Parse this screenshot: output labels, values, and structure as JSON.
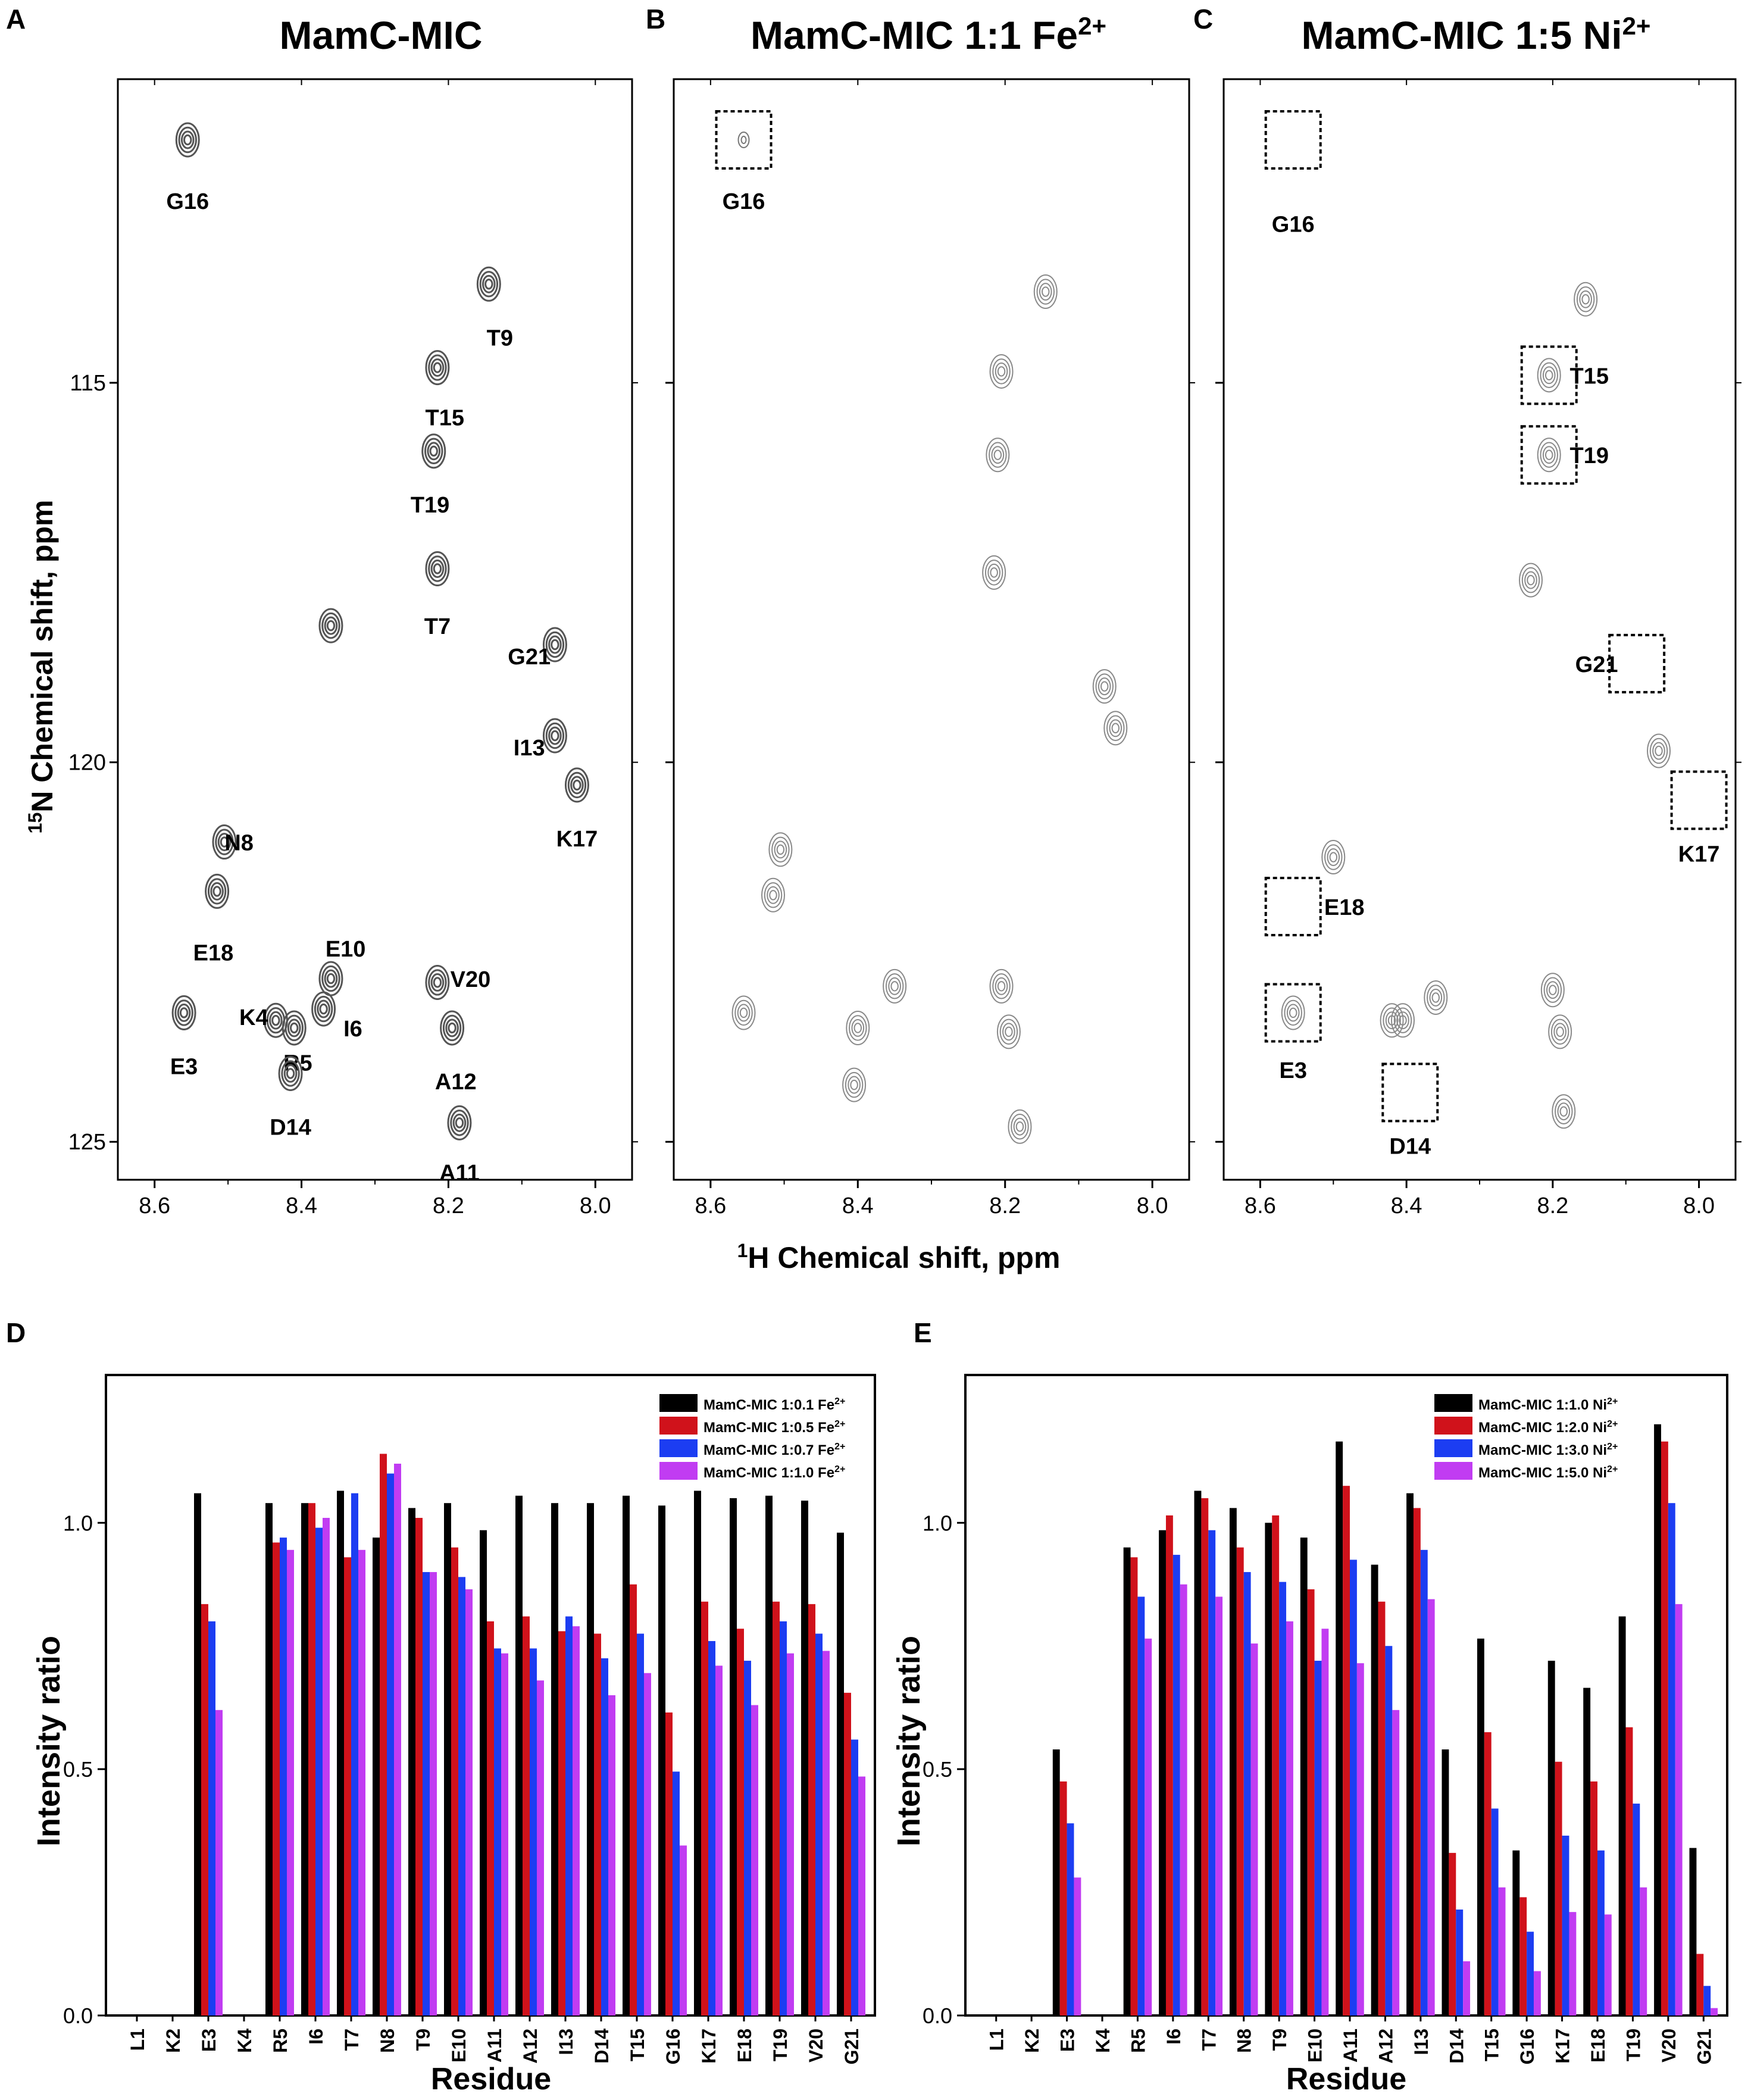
{
  "figure": {
    "shared_x_label_prefix": "1",
    "shared_x_label": "H Chemical shift, ppm",
    "shared_y_label_prefix": "15",
    "shared_y_label": "N Chemical shift, ppm"
  },
  "chart_data": [
    {
      "panel": "A",
      "type": "scatter",
      "title": "MamC-MIC",
      "title_sup": "",
      "xlabel": "1H Chemical shift, ppm",
      "ylabel": "15N Chemical shift, ppm",
      "xlim": [
        8.65,
        7.95
      ],
      "ylim": [
        111.0,
        125.5
      ],
      "xticks": [
        "8.6",
        "8.4",
        "8.2",
        "8.0"
      ],
      "yticks": [
        "115",
        "120",
        "125"
      ],
      "peaks": [
        {
          "label": "G16",
          "x": 8.555,
          "y": 111.8,
          "lx": 8.555,
          "ly": 112.6
        },
        {
          "label": "T9",
          "x": 8.145,
          "y": 113.7,
          "lx": 8.13,
          "ly": 114.4
        },
        {
          "label": "T15",
          "x": 8.215,
          "y": 114.8,
          "lx": 8.205,
          "ly": 115.45
        },
        {
          "label": "T19",
          "x": 8.22,
          "y": 115.9,
          "lx": 8.225,
          "ly": 116.6
        },
        {
          "label": "T7",
          "x": 8.215,
          "y": 117.45,
          "lx": 8.215,
          "ly": 118.2
        },
        {
          "label": "G21",
          "x": 8.055,
          "y": 118.45,
          "lx": 8.09,
          "ly": 118.6
        },
        {
          "label": "I13",
          "x": 8.055,
          "y": 119.65,
          "lx": 8.09,
          "ly": 119.8
        },
        {
          "label": "K17",
          "x": 8.025,
          "y": 120.3,
          "lx": 8.025,
          "ly": 121.0
        },
        {
          "label": "N8",
          "x": 8.505,
          "y": 121.05,
          "lx": 8.485,
          "ly": 121.05
        },
        {
          "label": "E18",
          "x": 8.515,
          "y": 121.7,
          "lx": 8.52,
          "ly": 122.5
        },
        {
          "label": "E10",
          "x": 8.36,
          "y": 122.85,
          "lx": 8.34,
          "ly": 122.45
        },
        {
          "label": "V20",
          "x": 8.215,
          "y": 122.9,
          "lx": 8.17,
          "ly": 122.85
        },
        {
          "label": "E3",
          "x": 8.56,
          "y": 123.3,
          "lx": 8.56,
          "ly": 124.0
        },
        {
          "label": "K4",
          "x": 8.435,
          "y": 123.4,
          "lx": 8.465,
          "ly": 123.35
        },
        {
          "label": "R5",
          "x": 8.41,
          "y": 123.5,
          "lx": 8.405,
          "ly": 123.95
        },
        {
          "label": "I6",
          "x": 8.37,
          "y": 123.25,
          "lx": 8.33,
          "ly": 123.5
        },
        {
          "label": "A12",
          "x": 8.195,
          "y": 123.5,
          "lx": 8.19,
          "ly": 124.2
        },
        {
          "label": "D14",
          "x": 8.415,
          "y": 124.1,
          "lx": 8.415,
          "ly": 124.8
        },
        {
          "label": "A11",
          "x": 8.185,
          "y": 124.75,
          "lx": 8.185,
          "ly": 125.4
        }
      ],
      "extra_peaks": [
        {
          "x": 8.36,
          "y": 118.2
        }
      ],
      "boxes": []
    },
    {
      "panel": "B",
      "type": "scatter",
      "title": "MamC-MIC 1:1 Fe",
      "title_sup": "2+",
      "xlabel": "1H Chemical shift, ppm",
      "ylabel": "15N Chemical shift, ppm",
      "xlim": [
        8.65,
        7.95
      ],
      "ylim": [
        111.0,
        125.5
      ],
      "xticks": [
        "8.6",
        "8.4",
        "8.2",
        "8.0"
      ],
      "yticks": [],
      "peaks": [
        {
          "label": "G16",
          "x": 8.555,
          "y": 111.8,
          "lx": 8.555,
          "ly": 112.6
        }
      ],
      "extra_peaks": [
        {
          "x": 8.145,
          "y": 113.8
        },
        {
          "x": 8.205,
          "y": 114.85
        },
        {
          "x": 8.21,
          "y": 115.95
        },
        {
          "x": 8.215,
          "y": 117.5
        },
        {
          "x": 8.065,
          "y": 119.0
        },
        {
          "x": 8.05,
          "y": 119.55
        },
        {
          "x": 8.505,
          "y": 121.15
        },
        {
          "x": 8.515,
          "y": 121.75
        },
        {
          "x": 8.35,
          "y": 122.95
        },
        {
          "x": 8.205,
          "y": 122.95
        },
        {
          "x": 8.195,
          "y": 123.55
        },
        {
          "x": 8.555,
          "y": 123.3
        },
        {
          "x": 8.4,
          "y": 123.5
        },
        {
          "x": 8.405,
          "y": 124.25
        },
        {
          "x": 8.18,
          "y": 124.8
        }
      ],
      "boxes": [
        {
          "label": "G16",
          "x": 8.555,
          "y": 111.8
        }
      ]
    },
    {
      "panel": "C",
      "type": "scatter",
      "title": "MamC-MIC 1:5 Ni",
      "title_sup": "2+",
      "xlabel": "1H Chemical shift, ppm",
      "ylabel": "15N Chemical shift, ppm",
      "xlim": [
        8.65,
        7.95
      ],
      "ylim": [
        111.0,
        125.5
      ],
      "xticks": [
        "8.6",
        "8.4",
        "8.2",
        "8.0"
      ],
      "yticks": [],
      "peaks": [
        {
          "label": "G16",
          "x": 8.555,
          "y": 111.8,
          "lx": 8.555,
          "ly": 112.9
        },
        {
          "label": "T15",
          "x": 8.205,
          "y": 114.9,
          "lx": 8.15,
          "ly": 114.9
        },
        {
          "label": "T19",
          "x": 8.205,
          "y": 115.95,
          "lx": 8.15,
          "ly": 115.95
        },
        {
          "label": "G21",
          "x": 8.085,
          "y": 118.7,
          "lx": 8.14,
          "ly": 118.7
        },
        {
          "label": "K17",
          "x": 8.0,
          "y": 120.5,
          "lx": 8.0,
          "ly": 121.2
        },
        {
          "label": "E18",
          "x": 8.555,
          "y": 121.9,
          "lx": 8.485,
          "ly": 121.9
        },
        {
          "label": "E3",
          "x": 8.555,
          "y": 123.3,
          "lx": 8.555,
          "ly": 124.05
        },
        {
          "label": "D14",
          "x": 8.395,
          "y": 124.35,
          "lx": 8.395,
          "ly": 125.05
        }
      ],
      "extra_peaks": [
        {
          "x": 8.155,
          "y": 113.9
        },
        {
          "x": 8.23,
          "y": 117.6
        },
        {
          "x": 8.055,
          "y": 119.85
        },
        {
          "x": 8.5,
          "y": 121.25
        },
        {
          "x": 8.36,
          "y": 123.1
        },
        {
          "x": 8.42,
          "y": 123.4
        },
        {
          "x": 8.405,
          "y": 123.4
        },
        {
          "x": 8.2,
          "y": 123.0
        },
        {
          "x": 8.19,
          "y": 123.55
        },
        {
          "x": 8.185,
          "y": 124.6
        },
        {
          "x": 8.205,
          "y": 114.9
        },
        {
          "x": 8.205,
          "y": 115.95
        },
        {
          "x": 8.555,
          "y": 123.3
        }
      ],
      "boxes": [
        {
          "label": "G16",
          "x": 8.555,
          "y": 111.8
        },
        {
          "label": "T15",
          "x": 8.205,
          "y": 114.9
        },
        {
          "label": "T19",
          "x": 8.205,
          "y": 115.95
        },
        {
          "label": "G21",
          "x": 8.085,
          "y": 118.7
        },
        {
          "label": "K17",
          "x": 8.0,
          "y": 120.5
        },
        {
          "label": "E18",
          "x": 8.555,
          "y": 121.9
        },
        {
          "label": "E3",
          "x": 8.555,
          "y": 123.3
        },
        {
          "label": "D14",
          "x": 8.395,
          "y": 124.35
        }
      ]
    },
    {
      "panel": "D",
      "type": "bar",
      "title": "",
      "xlabel": "Residue",
      "ylabel": "Intensity ratio",
      "ylim": [
        0,
        1.3
      ],
      "yticks": [
        "0.0",
        "0.5",
        "1.0"
      ],
      "categories": [
        "L1",
        "K2",
        "E3",
        "K4",
        "R5",
        "I6",
        "T7",
        "N8",
        "T9",
        "E10",
        "A11",
        "A12",
        "I13",
        "D14",
        "T15",
        "G16",
        "K17",
        "E18",
        "T19",
        "V20",
        "G21"
      ],
      "series": [
        {
          "name": "MamC-MIC 1:0.1 Fe",
          "sup": "2+",
          "color": "#000000",
          "values": [
            0,
            0,
            1.06,
            0,
            1.04,
            1.04,
            1.065,
            0.97,
            1.03,
            1.04,
            0.985,
            1.055,
            1.04,
            1.04,
            1.055,
            1.035,
            1.065,
            1.05,
            1.055,
            1.045,
            0.98
          ]
        },
        {
          "name": "MamC-MIC 1:0.5 Fe",
          "sup": "2+",
          "color": "#d0121b",
          "values": [
            0,
            0,
            0.835,
            0,
            0.96,
            1.04,
            0.93,
            1.14,
            1.01,
            0.95,
            0.8,
            0.81,
            0.78,
            0.775,
            0.875,
            0.615,
            0.84,
            0.785,
            0.84,
            0.835,
            0.655
          ]
        },
        {
          "name": "MamC-MIC 1:0.7 Fe",
          "sup": "2+",
          "color": "#1c3df2",
          "values": [
            0,
            0,
            0.8,
            0,
            0.97,
            0.99,
            1.06,
            1.1,
            0.9,
            0.89,
            0.745,
            0.745,
            0.81,
            0.725,
            0.775,
            0.495,
            0.76,
            0.72,
            0.8,
            0.775,
            0.56
          ]
        },
        {
          "name": "MamC-MIC 1:1.0 Fe",
          "sup": "2+",
          "color": "#c13cf2",
          "values": [
            0,
            0,
            0.62,
            0,
            0.945,
            1.01,
            0.945,
            1.12,
            0.9,
            0.865,
            0.735,
            0.68,
            0.79,
            0.65,
            0.695,
            0.345,
            0.71,
            0.63,
            0.735,
            0.74,
            0.485
          ]
        }
      ]
    },
    {
      "panel": "E",
      "type": "bar",
      "title": "",
      "xlabel": "Residue",
      "ylabel": "Intensity ratio",
      "ylim": [
        0,
        1.3
      ],
      "yticks": [
        "0.0",
        "0.5",
        "1.0"
      ],
      "categories": [
        "L1",
        "K2",
        "E3",
        "K4",
        "R5",
        "I6",
        "T7",
        "N8",
        "T9",
        "E10",
        "A11",
        "A12",
        "I13",
        "D14",
        "T15",
        "G16",
        "K17",
        "E18",
        "T19",
        "V20",
        "G21"
      ],
      "series": [
        {
          "name": "MamC-MIC 1:1.0 Ni",
          "sup": "2+",
          "color": "#000000",
          "values": [
            0,
            0,
            0.54,
            0,
            0.95,
            0.985,
            1.065,
            1.03,
            1.0,
            0.97,
            1.165,
            0.915,
            1.06,
            0.54,
            0.765,
            0.335,
            0.72,
            0.665,
            0.81,
            1.2,
            0.34
          ]
        },
        {
          "name": "MamC-MIC 1:2.0 Ni",
          "sup": "2+",
          "color": "#d0121b",
          "values": [
            0,
            0,
            0.475,
            0,
            0.93,
            1.015,
            1.05,
            0.95,
            1.015,
            0.865,
            1.075,
            0.84,
            1.03,
            0.33,
            0.575,
            0.24,
            0.515,
            0.475,
            0.585,
            1.165,
            0.125
          ]
        },
        {
          "name": "MamC-MIC 1:3.0 Ni",
          "sup": "2+",
          "color": "#1c3df2",
          "values": [
            0,
            0,
            0.39,
            0,
            0.85,
            0.935,
            0.985,
            0.9,
            0.88,
            0.72,
            0.925,
            0.75,
            0.945,
            0.215,
            0.42,
            0.17,
            0.365,
            0.335,
            0.43,
            1.04,
            0.06
          ]
        },
        {
          "name": "MamC-MIC 1:5.0 Ni",
          "sup": "2+",
          "color": "#c13cf2",
          "values": [
            0,
            0,
            0.28,
            0,
            0.765,
            0.875,
            0.85,
            0.755,
            0.8,
            0.785,
            0.715,
            0.62,
            0.845,
            0.11,
            0.26,
            0.09,
            0.21,
            0.205,
            0.26,
            0.835,
            0.015
          ]
        }
      ]
    }
  ]
}
